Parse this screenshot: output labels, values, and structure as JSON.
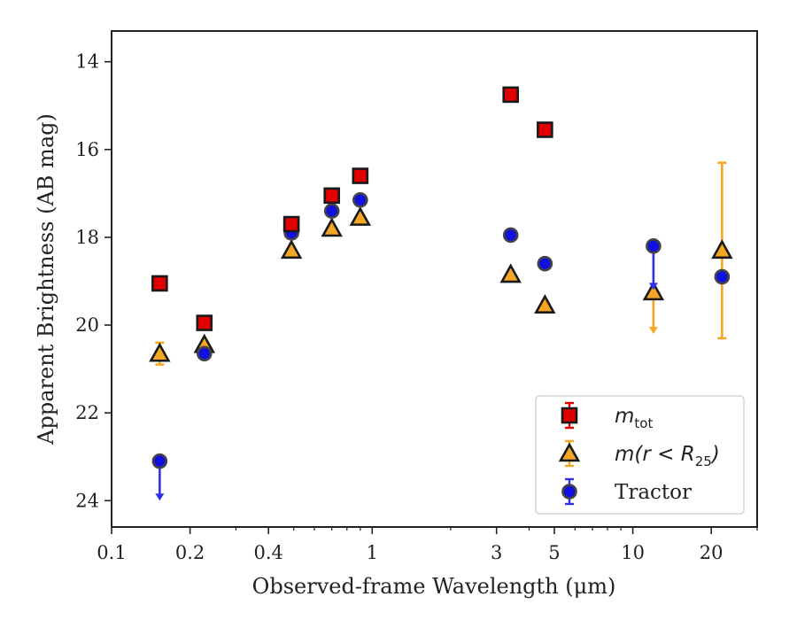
{
  "chart_data": {
    "type": "scatter",
    "xlabel": "Observed-frame Wavelength (μm)",
    "ylabel": "Apparent Brightness (AB mag)",
    "xscale": "log",
    "xlim": [
      0.1,
      30
    ],
    "ylim": [
      24.6,
      13.3
    ],
    "y_inverted": true,
    "x_ticks": [
      0.1,
      0.2,
      0.4,
      1,
      3,
      5,
      10,
      20
    ],
    "x_tick_labels": [
      "0.1",
      "0.2",
      "0.4",
      "1",
      "3",
      "5",
      "10",
      "20"
    ],
    "y_ticks": [
      14,
      16,
      18,
      20,
      22,
      24
    ],
    "y_tick_labels": [
      "14",
      "16",
      "18",
      "20",
      "22",
      "24"
    ],
    "grid": false,
    "legend_position": "lower-right",
    "series": [
      {
        "name": "m_tot",
        "legend_label": {
          "main": "m",
          "sub": "tot",
          "suffix": ""
        },
        "marker": "square",
        "color": "#e00000",
        "errorbar_color": "#e00000",
        "points": [
          {
            "x": 0.153,
            "y": 19.05
          },
          {
            "x": 0.227,
            "y": 19.95
          },
          {
            "x": 0.49,
            "y": 17.7
          },
          {
            "x": 0.7,
            "y": 17.05
          },
          {
            "x": 0.9,
            "y": 16.6
          },
          {
            "x": 3.4,
            "y": 14.75
          },
          {
            "x": 4.6,
            "y": 15.55
          }
        ]
      },
      {
        "name": "m(r < R_25)",
        "legend_label": {
          "main": "m(r < R",
          "sub": "25",
          "suffix": ")"
        },
        "marker": "triangle",
        "color": "#f5a623",
        "errorbar_color": "#f5a623",
        "points": [
          {
            "x": 0.153,
            "y": 20.65,
            "yerr": 0.25
          },
          {
            "x": 0.227,
            "y": 20.45
          },
          {
            "x": 0.49,
            "y": 18.3
          },
          {
            "x": 0.7,
            "y": 17.8
          },
          {
            "x": 0.9,
            "y": 17.55
          },
          {
            "x": 3.4,
            "y": 18.85
          },
          {
            "x": 4.6,
            "y": 19.55
          },
          {
            "x": 12.0,
            "y": 19.25,
            "upper_limit": true,
            "arrow_to": 20.2
          },
          {
            "x": 22.0,
            "y": 18.3,
            "yerr": 2.0
          }
        ]
      },
      {
        "name": "Tractor",
        "legend_label": {
          "main": "Tractor",
          "sub": "",
          "suffix": ""
        },
        "marker": "circle",
        "color": "#1010e0",
        "errorbar_color": "#3030e8",
        "points": [
          {
            "x": 0.153,
            "y": 23.1,
            "upper_limit": true,
            "arrow_to": 24.0
          },
          {
            "x": 0.227,
            "y": 20.65
          },
          {
            "x": 0.49,
            "y": 17.9
          },
          {
            "x": 0.7,
            "y": 17.4
          },
          {
            "x": 0.9,
            "y": 17.15
          },
          {
            "x": 3.4,
            "y": 17.95
          },
          {
            "x": 4.6,
            "y": 18.6
          },
          {
            "x": 12.0,
            "y": 18.2,
            "upper_limit": true,
            "arrow_to": 19.2
          },
          {
            "x": 22.0,
            "y": 18.9
          }
        ]
      }
    ]
  }
}
